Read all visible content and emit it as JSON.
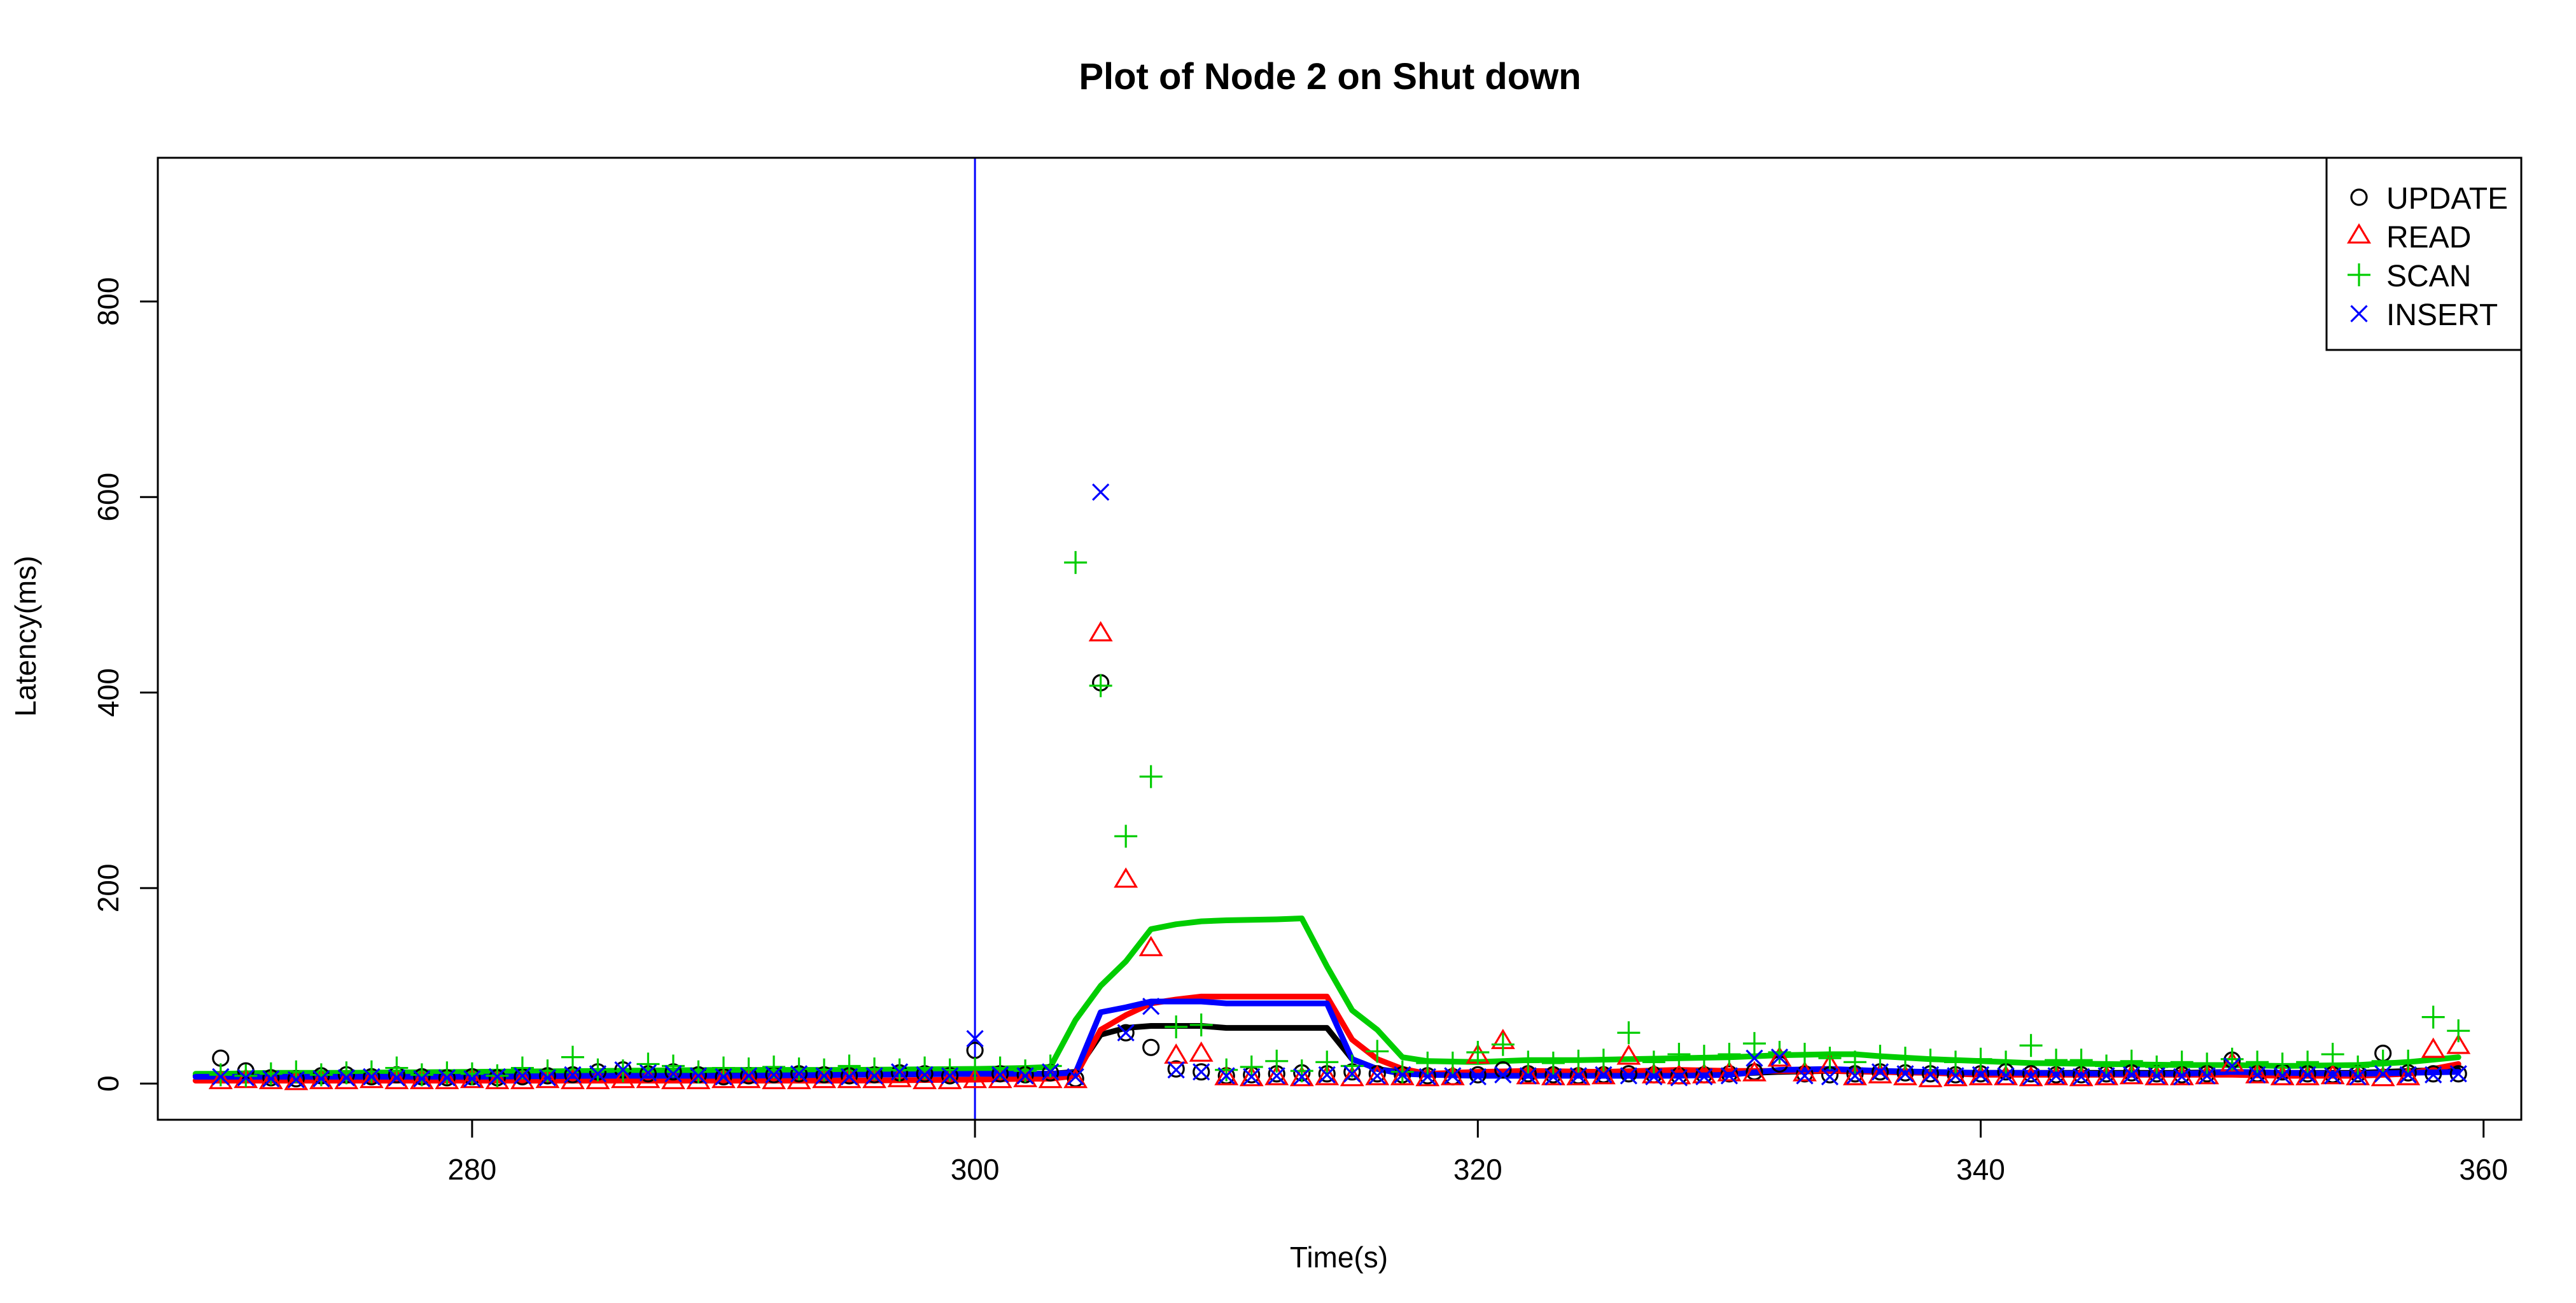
{
  "chart_data": {
    "type": "scatter",
    "title": "Plot of Node 2 on Shut down",
    "xlabel": "Time(s)",
    "ylabel": "Latency(ms)",
    "xlim": [
      267.5,
      361.5
    ],
    "ylim": [
      -37,
      947
    ],
    "x_ticks": [
      280,
      300,
      320,
      340,
      360
    ],
    "y_ticks": [
      0,
      200,
      400,
      600,
      800
    ],
    "vline": {
      "x": 300,
      "color": "#0000ff"
    },
    "legend": {
      "position": "top-right",
      "entries": [
        "UPDATE",
        "READ",
        "SCAN",
        "INSERT"
      ]
    },
    "series": [
      {
        "name": "UPDATE",
        "marker": "circle",
        "color": "#000000",
        "x": [
          270,
          271,
          272,
          273,
          274,
          275,
          276,
          277,
          278,
          279,
          280,
          281,
          282,
          283,
          284,
          285,
          286,
          287,
          288,
          289,
          290,
          291,
          292,
          293,
          294,
          295,
          296,
          297,
          298,
          299,
          300,
          301,
          302,
          303,
          304,
          305,
          306,
          307,
          308,
          309,
          310,
          311,
          312,
          313,
          314,
          315,
          316,
          317,
          318,
          319,
          320,
          321,
          322,
          323,
          324,
          325,
          326,
          327,
          328,
          329,
          330,
          331,
          332,
          333,
          334,
          335,
          336,
          337,
          338,
          339,
          340,
          341,
          342,
          343,
          344,
          345,
          346,
          347,
          348,
          349,
          350,
          351,
          352,
          353,
          354,
          355,
          356,
          357,
          358,
          359
        ],
        "y": [
          26,
          13,
          6,
          5,
          8,
          9,
          7,
          9,
          7,
          6,
          7,
          6,
          7,
          8,
          9,
          12,
          14,
          10,
          12,
          9,
          7,
          8,
          9,
          10,
          9,
          8,
          9,
          11,
          10,
          8,
          34,
          10,
          9,
          11,
          5,
          410,
          52,
          37,
          15,
          12,
          8,
          9,
          10,
          11,
          10,
          12,
          10,
          9,
          8,
          7,
          9,
          14,
          10,
          9,
          8,
          9,
          10,
          9,
          8,
          9,
          10,
          12,
          20,
          10,
          9,
          10,
          12,
          11,
          10,
          9,
          10,
          12,
          10,
          9,
          9,
          10,
          11,
          10,
          9,
          10,
          24,
          10,
          12,
          10,
          9,
          10,
          31,
          11,
          10,
          10
        ]
      },
      {
        "name": "READ",
        "marker": "triangle",
        "color": "#ff0000",
        "x": [
          270,
          271,
          272,
          273,
          274,
          275,
          276,
          277,
          278,
          279,
          280,
          281,
          282,
          283,
          284,
          285,
          286,
          287,
          288,
          289,
          290,
          291,
          292,
          293,
          294,
          295,
          296,
          297,
          298,
          299,
          300,
          301,
          302,
          303,
          304,
          305,
          306,
          307,
          308,
          309,
          310,
          311,
          312,
          313,
          314,
          315,
          316,
          317,
          318,
          319,
          320,
          321,
          322,
          323,
          324,
          325,
          326,
          327,
          328,
          329,
          330,
          331,
          332,
          333,
          334,
          335,
          336,
          337,
          338,
          339,
          340,
          341,
          342,
          343,
          344,
          345,
          346,
          347,
          348,
          349,
          350,
          351,
          352,
          353,
          354,
          355,
          356,
          357,
          358,
          359
        ],
        "y": [
          2,
          3,
          2,
          1,
          2,
          2,
          3,
          2,
          2,
          2,
          3,
          2,
          2,
          3,
          2,
          2,
          3,
          3,
          2,
          2,
          3,
          3,
          2,
          2,
          3,
          3,
          3,
          4,
          2,
          2,
          3,
          3,
          4,
          3,
          3,
          460,
          208,
          138,
          28,
          30,
          6,
          5,
          6,
          5,
          6,
          5,
          6,
          6,
          5,
          6,
          28,
          43,
          7,
          6,
          6,
          7,
          27,
          8,
          7,
          8,
          10,
          10,
          25,
          10,
          18,
          6,
          8,
          6,
          4,
          5,
          6,
          6,
          5,
          6,
          5,
          6,
          7,
          6,
          6,
          7,
          20,
          8,
          6,
          6,
          7,
          6,
          5,
          6,
          34,
          38
        ]
      },
      {
        "name": "SCAN",
        "marker": "plus",
        "color": "#00cd00",
        "x": [
          270,
          271,
          272,
          273,
          274,
          275,
          276,
          277,
          278,
          279,
          280,
          281,
          282,
          283,
          284,
          285,
          286,
          287,
          288,
          289,
          290,
          291,
          292,
          293,
          294,
          295,
          296,
          297,
          298,
          299,
          300,
          301,
          302,
          303,
          304,
          305,
          306,
          307,
          308,
          309,
          310,
          311,
          312,
          313,
          314,
          315,
          316,
          317,
          318,
          319,
          320,
          321,
          322,
          323,
          324,
          325,
          326,
          327,
          328,
          329,
          330,
          331,
          332,
          333,
          334,
          335,
          336,
          337,
          338,
          339,
          340,
          341,
          342,
          343,
          344,
          345,
          346,
          347,
          348,
          349,
          350,
          351,
          352,
          353,
          354,
          355,
          356,
          357,
          358,
          359
        ],
        "y": [
          9,
          8,
          10,
          12,
          9,
          11,
          12,
          16,
          9,
          11,
          10,
          8,
          16,
          13,
          27,
          14,
          13,
          20,
          18,
          12,
          16,
          15,
          17,
          15,
          14,
          18,
          15,
          14,
          16,
          14,
          15,
          16,
          13,
          18,
          533,
          407,
          253,
          314,
          58,
          60,
          14,
          17,
          23,
          13,
          22,
          18,
          33,
          12,
          21,
          21,
          32,
          40,
          22,
          21,
          23,
          24,
          52,
          22,
          30,
          28,
          30,
          41,
          32,
          30,
          26,
          22,
          28,
          26,
          24,
          22,
          25,
          22,
          39,
          24,
          24,
          18,
          23,
          17,
          22,
          20,
          25,
          22,
          20,
          22,
          30,
          17,
          23,
          23,
          68,
          54
        ]
      },
      {
        "name": "INSERT",
        "marker": "x",
        "color": "#0000ff",
        "x": [
          270,
          271,
          272,
          273,
          274,
          275,
          276,
          277,
          278,
          279,
          280,
          281,
          282,
          283,
          284,
          285,
          286,
          287,
          288,
          289,
          290,
          291,
          292,
          293,
          294,
          295,
          296,
          297,
          298,
          299,
          300,
          301,
          302,
          303,
          304,
          305,
          306,
          307,
          308,
          309,
          310,
          311,
          312,
          313,
          314,
          315,
          316,
          317,
          318,
          319,
          320,
          321,
          322,
          323,
          324,
          325,
          326,
          327,
          328,
          329,
          330,
          331,
          332,
          333,
          334,
          335,
          336,
          337,
          338,
          339,
          340,
          341,
          342,
          343,
          344,
          345,
          346,
          347,
          348,
          349,
          350,
          351,
          352,
          353,
          354,
          355,
          356,
          357,
          358,
          359
        ],
        "y": [
          7,
          6,
          5,
          4,
          5,
          6,
          7,
          6,
          5,
          6,
          5,
          7,
          8,
          6,
          9,
          10,
          14,
          11,
          10,
          8,
          7,
          8,
          9,
          10,
          8,
          7,
          8,
          12,
          9,
          8,
          46,
          9,
          8,
          12,
          7,
          605,
          52,
          79,
          14,
          12,
          8,
          7,
          8,
          7,
          9,
          10,
          8,
          9,
          7,
          8,
          7,
          9,
          8,
          7,
          8,
          9,
          8,
          7,
          6,
          7,
          8,
          26,
          27,
          8,
          7,
          8,
          12,
          10,
          9,
          8,
          9,
          8,
          7,
          8,
          7,
          8,
          9,
          8,
          7,
          8,
          18,
          9,
          8,
          9,
          8,
          7,
          10,
          9,
          9,
          10
        ]
      }
    ],
    "smooth_lines": [
      {
        "name": "UPDATE",
        "color": "#000000",
        "x": [
          269,
          270,
          272,
          275,
          280,
          285,
          290,
          295,
          300,
          302,
          303,
          304,
          305,
          306,
          307,
          308,
          309,
          310,
          312,
          314,
          315,
          316,
          317,
          318,
          320,
          322,
          325,
          328,
          330,
          332,
          334,
          336,
          338,
          340,
          342,
          345,
          348,
          350,
          352,
          355,
          357,
          359
        ],
        "y": [
          8,
          9,
          9,
          8,
          8,
          8,
          9,
          10,
          10,
          10,
          10,
          12,
          50,
          57,
          59,
          59,
          59,
          57,
          57,
          57,
          25,
          15,
          11,
          10,
          9,
          9,
          10,
          9,
          10,
          12,
          13,
          12,
          11,
          11,
          11,
          11,
          11,
          12,
          11,
          11,
          13,
          14
        ]
      },
      {
        "name": "READ",
        "color": "#ff0000",
        "x": [
          269,
          270,
          272,
          275,
          280,
          285,
          290,
          295,
          300,
          302,
          303,
          304,
          305,
          306,
          307,
          308,
          309,
          310,
          312,
          314,
          315,
          316,
          317,
          318,
          320,
          322,
          325,
          328,
          330,
          332,
          334,
          336,
          338,
          340,
          342,
          345,
          348,
          350,
          352,
          355,
          357,
          359
        ],
        "y": [
          3,
          3,
          3,
          3,
          3,
          3,
          3,
          3,
          4,
          5,
          5,
          8,
          55,
          70,
          82,
          86,
          89,
          89,
          89,
          89,
          45,
          25,
          15,
          10,
          12,
          13,
          12,
          14,
          13,
          13,
          13,
          12,
          11,
          9,
          9,
          9,
          9,
          9,
          8,
          8,
          10,
          20
        ]
      },
      {
        "name": "SCAN",
        "color": "#00cd00",
        "x": [
          269,
          270,
          272,
          275,
          280,
          285,
          290,
          295,
          300,
          302,
          303,
          304,
          305,
          306,
          307,
          308,
          309,
          310,
          312,
          313,
          314,
          315,
          316,
          317,
          318,
          320,
          322,
          324,
          326,
          328,
          330,
          332,
          334,
          335,
          336,
          338,
          340,
          342,
          345,
          348,
          350,
          352,
          355,
          357,
          359
        ],
        "y": [
          10,
          10,
          11,
          11,
          12,
          13,
          14,
          14,
          15,
          16,
          17,
          65,
          100,
          125,
          158,
          163,
          166,
          167,
          168,
          169,
          120,
          75,
          55,
          27,
          23,
          22,
          24,
          24,
          25,
          26,
          27,
          29,
          30,
          30,
          28,
          25,
          23,
          21,
          20,
          19,
          19,
          18,
          19,
          22,
          27
        ]
      },
      {
        "name": "INSERT",
        "color": "#0000ff",
        "x": [
          269,
          270,
          272,
          275,
          280,
          285,
          290,
          295,
          300,
          302,
          303,
          304,
          305,
          306,
          307,
          308,
          309,
          310,
          312,
          314,
          315,
          316,
          317,
          318,
          320,
          322,
          325,
          328,
          330,
          332,
          334,
          336,
          338,
          340,
          342,
          345,
          348,
          350,
          352,
          355,
          357,
          359
        ],
        "y": [
          7,
          7,
          7,
          7,
          7,
          8,
          8,
          9,
          10,
          10,
          10,
          11,
          73,
          78,
          84,
          84,
          84,
          82,
          82,
          82,
          25,
          15,
          10,
          9,
          8,
          8,
          8,
          8,
          9,
          14,
          15,
          13,
          12,
          11,
          11,
          10,
          10,
          12,
          11,
          10,
          11,
          12
        ]
      }
    ]
  }
}
